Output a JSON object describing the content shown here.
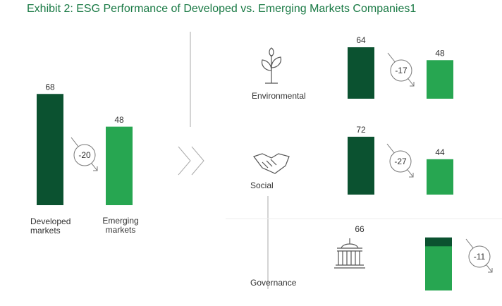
{
  "title": "Exhibit 2: ESG Performance of Developed vs. Emerging Markets Companies1",
  "chart_data": [
    {
      "type": "bar",
      "categories": [
        "Developed markets",
        "Emerging markets"
      ],
      "values": [
        68,
        48
      ],
      "change": -20,
      "colors": [
        "#0b5230",
        "#27a651"
      ]
    },
    {
      "type": "bar",
      "label": "Environmental",
      "values": [
        64,
        48
      ],
      "change": -17,
      "colors": [
        "#0b5230",
        "#27a651"
      ]
    },
    {
      "type": "bar",
      "label": "Social",
      "values": [
        72,
        44
      ],
      "change": -27,
      "colors": [
        "#0b5230",
        "#27a651"
      ]
    },
    {
      "type": "bar",
      "label": "Governance",
      "values": [
        66,
        55
      ],
      "change": -11,
      "colors": [
        "#0b5230",
        "#27a651"
      ]
    }
  ]
}
